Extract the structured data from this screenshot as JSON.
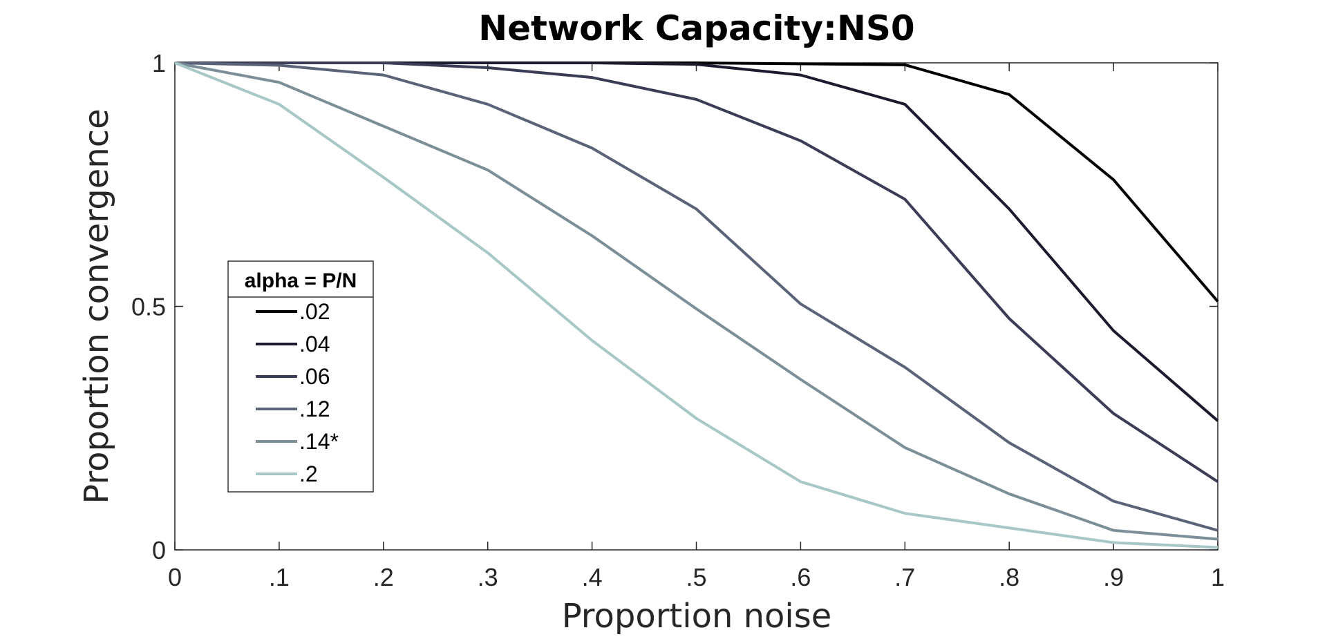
{
  "chart_data": {
    "type": "line",
    "title": "Network Capacity:NS0",
    "xlabel": "Proportion noise",
    "ylabel": "Proportion convergence",
    "xlim": [
      0,
      1
    ],
    "ylim": [
      0,
      1
    ],
    "x": [
      0,
      0.1,
      0.2,
      0.3,
      0.4,
      0.5,
      0.6,
      0.7,
      0.8,
      0.9,
      1.0
    ],
    "x_tick_labels": [
      "0",
      ".1",
      ".2",
      ".3",
      ".4",
      ".5",
      ".6",
      ".7",
      ".8",
      ".9",
      "1"
    ],
    "y_ticks": [
      0,
      0.5,
      1
    ],
    "y_tick_labels": [
      "0",
      "0.5",
      "1"
    ],
    "grid": false,
    "legend": {
      "title": "alpha = P/N",
      "placement": "middle-left"
    },
    "series": [
      {
        "name": ".02",
        "color": "#000000",
        "values": [
          1.0,
          1.0,
          1.0,
          1.0,
          1.0,
          1.0,
          0.998,
          0.996,
          0.935,
          0.76,
          0.51
        ]
      },
      {
        "name": ".04",
        "color": "#1c1a2e",
        "values": [
          1.0,
          1.0,
          1.0,
          1.0,
          1.0,
          0.997,
          0.975,
          0.915,
          0.7,
          0.45,
          0.265
        ]
      },
      {
        "name": ".06",
        "color": "#3b3c55",
        "values": [
          1.0,
          1.0,
          1.0,
          0.99,
          0.97,
          0.925,
          0.84,
          0.72,
          0.475,
          0.28,
          0.14
        ]
      },
      {
        "name": ".12",
        "color": "#5a6378",
        "values": [
          1.0,
          0.995,
          0.975,
          0.915,
          0.825,
          0.7,
          0.505,
          0.375,
          0.22,
          0.1,
          0.04
        ]
      },
      {
        "name": ".14*",
        "color": "#7c8e98",
        "values": [
          1.0,
          0.96,
          0.87,
          0.78,
          0.645,
          0.495,
          0.35,
          0.21,
          0.115,
          0.04,
          0.022
        ]
      },
      {
        "name": ".2",
        "color": "#a7c8c6",
        "values": [
          1.0,
          0.915,
          0.765,
          0.61,
          0.43,
          0.27,
          0.14,
          0.075,
          0.045,
          0.015,
          0.005
        ]
      }
    ]
  }
}
